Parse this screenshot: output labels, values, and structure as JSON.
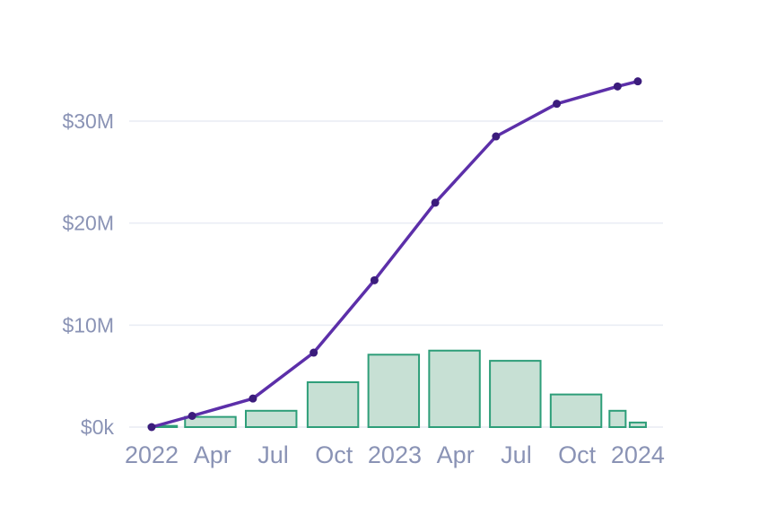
{
  "chart_data": {
    "type": "combo",
    "title": "",
    "subtitle": "",
    "legend": false,
    "grid": true,
    "background_color": "#ffffff",
    "grid_color": "#e9ecf4",
    "axis_label_color": "#8a93b5",
    "x_axis": {
      "unit": "months since Jan 2022",
      "range_months": [
        -1.1,
        25.2
      ],
      "ticks": [
        {
          "label": "2022",
          "month": 0
        },
        {
          "label": "Apr",
          "month": 3
        },
        {
          "label": "Jul",
          "month": 6
        },
        {
          "label": "Oct",
          "month": 9
        },
        {
          "label": "2023",
          "month": 12
        },
        {
          "label": "Apr",
          "month": 15
        },
        {
          "label": "Jul",
          "month": 18
        },
        {
          "label": "Oct",
          "month": 21
        },
        {
          "label": "2024",
          "month": 24
        }
      ]
    },
    "y_axis": {
      "unit": "USD",
      "range_values": [
        0,
        35.5
      ],
      "ticks": [
        {
          "label": "$0k",
          "value": 0
        },
        {
          "label": "$10M",
          "value": 10
        },
        {
          "label": "$20M",
          "value": 20
        },
        {
          "label": "$30M",
          "value": 30
        }
      ]
    },
    "series": [
      {
        "name": "periodic-amount-bars",
        "type": "bar",
        "fill": "#c7e0d4",
        "stroke": "#2e9e79",
        "points": [
          {
            "month": 0.55,
            "width_months": 1.4,
            "value": 0.12
          },
          {
            "month": 2.9,
            "width_months": 2.5,
            "value": 1.0
          },
          {
            "month": 5.9,
            "width_months": 2.5,
            "value": 1.6
          },
          {
            "month": 8.95,
            "width_months": 2.5,
            "value": 4.4
          },
          {
            "month": 11.95,
            "width_months": 2.5,
            "value": 7.1
          },
          {
            "month": 14.95,
            "width_months": 2.5,
            "value": 7.5
          },
          {
            "month": 17.95,
            "width_months": 2.5,
            "value": 6.5
          },
          {
            "month": 20.95,
            "width_months": 2.5,
            "value": 3.2
          },
          {
            "month": 23.0,
            "width_months": 0.8,
            "value": 1.6
          },
          {
            "month": 24.0,
            "width_months": 0.8,
            "value": 0.45
          }
        ]
      },
      {
        "name": "cumulative-amount-line",
        "type": "line",
        "stroke": "#5c2fa9",
        "dot_fill": "#3b1c7c",
        "points": [
          {
            "month": 0,
            "value": 0
          },
          {
            "month": 2,
            "value": 1.1
          },
          {
            "month": 5,
            "value": 2.8
          },
          {
            "month": 8,
            "value": 7.3
          },
          {
            "month": 11,
            "value": 14.4
          },
          {
            "month": 14,
            "value": 22.0
          },
          {
            "month": 17,
            "value": 28.5
          },
          {
            "month": 20,
            "value": 31.7
          },
          {
            "month": 23,
            "value": 33.4
          },
          {
            "month": 24,
            "value": 33.9
          }
        ]
      }
    ]
  }
}
